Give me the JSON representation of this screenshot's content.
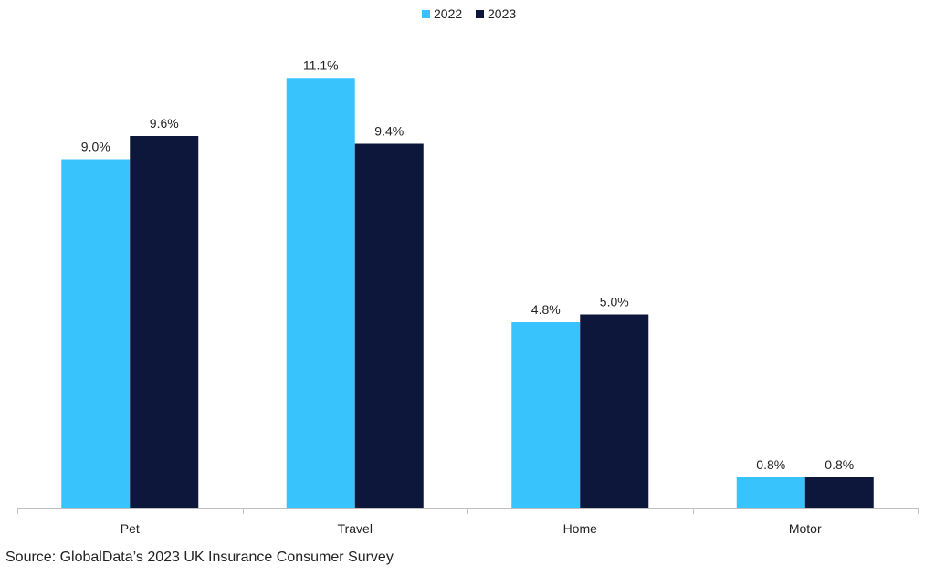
{
  "chart_data": {
    "type": "bar",
    "categories": [
      "Pet",
      "Travel",
      "Home",
      "Motor"
    ],
    "series": [
      {
        "name": "2022",
        "color": "#38C3FD",
        "values": [
          9.0,
          11.1,
          4.8,
          0.8
        ],
        "labels": [
          "9.0%",
          "11.1%",
          "4.8%",
          "0.8%"
        ]
      },
      {
        "name": "2023",
        "color": "#0D173C",
        "values": [
          9.6,
          9.4,
          5.0,
          0.8
        ],
        "labels": [
          "9.6%",
          "9.4%",
          "5.0%",
          "0.8%"
        ]
      }
    ],
    "ylim": [
      0,
      12
    ],
    "value_unit": "%",
    "grid": false,
    "legend_position": "top-center",
    "title": "",
    "xlabel": "",
    "ylabel": ""
  },
  "source_note": "Source: GlobalData’s 2023 UK Insurance Consumer Survey"
}
